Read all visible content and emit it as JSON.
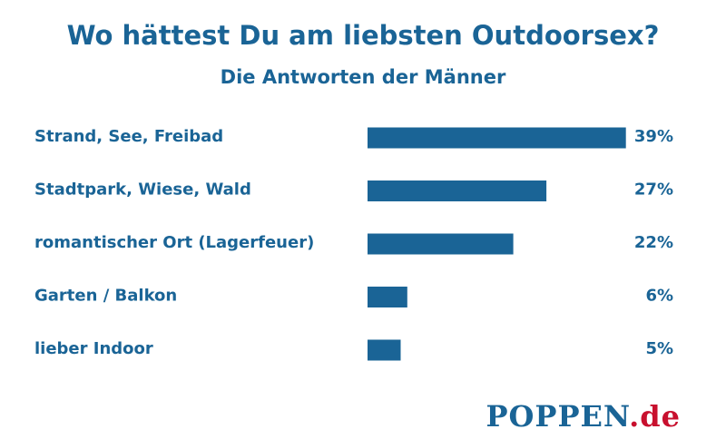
{
  "chart_data": {
    "type": "bar",
    "orientation": "horizontal",
    "title": "Wo hättest Du am liebsten Outdoorsex?",
    "subtitle": "Die Antworten der Männer",
    "categories": [
      "Strand, See, Freibad",
      "Stadtpark, Wiese, Wald",
      "romantischer Ort (Lagerfeuer)",
      "Garten / Balkon",
      "lieber Indoor"
    ],
    "values": [
      39,
      27,
      22,
      6,
      5
    ],
    "value_labels": [
      "39%",
      "27%",
      "22%",
      "6%",
      "5%"
    ],
    "grid": false,
    "bar_color": "#1a6496"
  },
  "logo": {
    "brand": "POPPEN",
    "tld": ".de"
  }
}
